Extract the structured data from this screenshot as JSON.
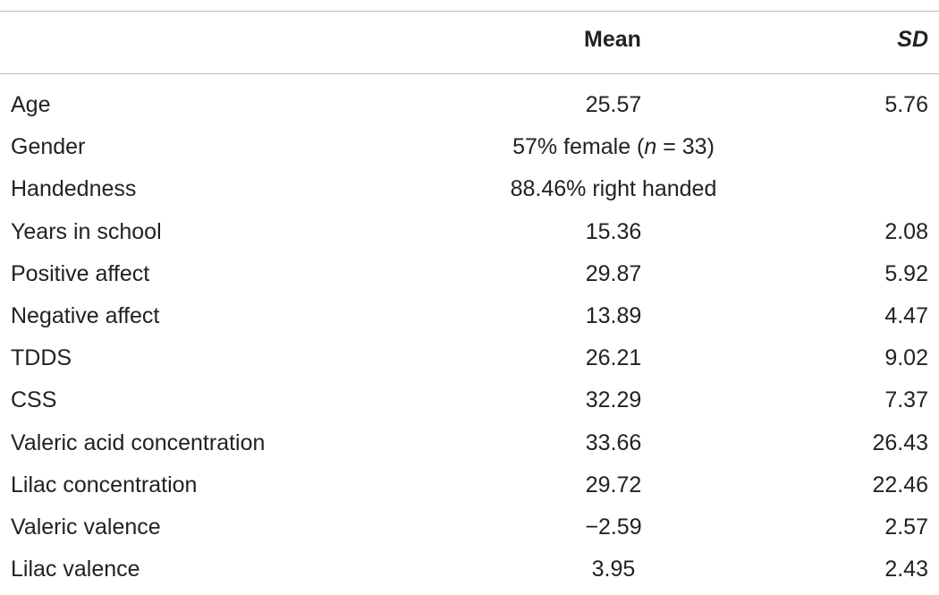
{
  "table": {
    "headers": {
      "label": "",
      "mean": "Mean",
      "sd": "SD"
    },
    "rows": [
      {
        "label": "Age",
        "mean": "25.57",
        "sd": "5.76"
      },
      {
        "label": "Gender",
        "mean_prefix": "57% female (",
        "mean_n": "n",
        "mean_suffix": " = 33)",
        "sd": ""
      },
      {
        "label": "Handedness",
        "mean": "88.46% right handed",
        "sd": ""
      },
      {
        "label": "Years in school",
        "mean": "15.36",
        "sd": "2.08"
      },
      {
        "label": "Positive affect",
        "mean": "29.87",
        "sd": "5.92"
      },
      {
        "label": "Negative affect",
        "mean": "13.89",
        "sd": "4.47"
      },
      {
        "label": "TDDS",
        "mean": "26.21",
        "sd": "9.02"
      },
      {
        "label": "CSS",
        "mean": "32.29",
        "sd": "7.37"
      },
      {
        "label": "Valeric acid concentration",
        "mean": "33.66",
        "sd": "26.43"
      },
      {
        "label": "Lilac concentration",
        "mean": "29.72",
        "sd": "22.46"
      },
      {
        "label": "Valeric valence",
        "mean": "−2.59",
        "sd": "2.57"
      },
      {
        "label": "Lilac valence",
        "mean": "3.95",
        "sd": "2.43"
      }
    ]
  }
}
